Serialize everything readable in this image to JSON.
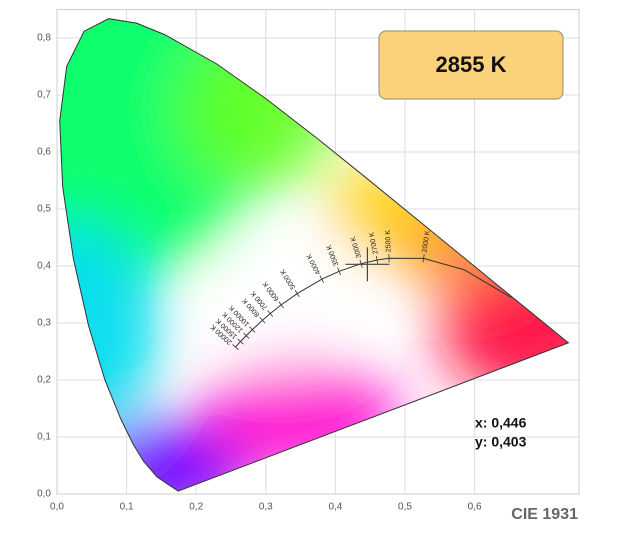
{
  "chart_data": {
    "type": "chromaticity",
    "xlim": [
      0,
      0.75
    ],
    "ylim": [
      0,
      0.85
    ],
    "grid": true,
    "xticks": [
      {
        "value": 0,
        "label": "0,0"
      },
      {
        "value": 0.1,
        "label": "0,1"
      },
      {
        "value": 0.2,
        "label": "0,2"
      },
      {
        "value": 0.3,
        "label": "0,3"
      },
      {
        "value": 0.4,
        "label": "0,4"
      },
      {
        "value": 0.5,
        "label": "0,5"
      },
      {
        "value": 0.6,
        "label": "0,6"
      }
    ],
    "yticks": [
      {
        "value": 0,
        "label": "0,0"
      },
      {
        "value": 0.1,
        "label": "0,1"
      },
      {
        "value": 0.2,
        "label": "0,2"
      },
      {
        "value": 0.3,
        "label": "0,3"
      },
      {
        "value": 0.4,
        "label": "0,4"
      },
      {
        "value": 0.5,
        "label": "0,5"
      },
      {
        "value": 0.6,
        "label": "0,6"
      },
      {
        "value": 0.7,
        "label": "0,7"
      },
      {
        "value": 0.8,
        "label": "0,8"
      }
    ],
    "spectral_locus": {
      "x": [
        0.1741,
        0.144,
        0.1241,
        0.1096,
        0.0913,
        0.0687,
        0.0454,
        0.0235,
        0.0082,
        0.0039,
        0.0139,
        0.0389,
        0.0743,
        0.1142,
        0.1547,
        0.2296,
        0.3016,
        0.3731,
        0.4441,
        0.5125,
        0.5752,
        0.627,
        0.6915,
        0.7347
      ],
      "y": [
        0.005,
        0.0297,
        0.0578,
        0.0868,
        0.1327,
        0.2007,
        0.295,
        0.4127,
        0.5384,
        0.6548,
        0.7502,
        0.812,
        0.8338,
        0.8262,
        0.8059,
        0.7543,
        0.6923,
        0.6245,
        0.5547,
        0.4866,
        0.4242,
        0.3725,
        0.3083,
        0.2653
      ]
    },
    "planckian_locus": {
      "x": [
        0.6528,
        0.5857,
        0.5267,
        0.477,
        0.4599,
        0.4369,
        0.4053,
        0.3805,
        0.3451,
        0.3221,
        0.3064,
        0.2952,
        0.2807,
        0.2719,
        0.2637,
        0.2565
      ],
      "y": [
        0.3444,
        0.3931,
        0.4133,
        0.4137,
        0.4106,
        0.4041,
        0.3907,
        0.3768,
        0.3516,
        0.3318,
        0.3166,
        0.3048,
        0.2884,
        0.2779,
        0.2675,
        0.2577
      ],
      "labels": [
        null,
        null,
        "2000 K",
        "2500 K",
        "2700 K",
        "3000 K",
        "3500 K",
        "4000 K",
        "5000 K",
        "6000 K",
        "7000 K",
        "8000 K",
        "10000 K",
        "12000 K",
        "15000 K",
        "20000 K"
      ]
    },
    "point": {
      "x": 0.446,
      "y": 0.403,
      "value_labels": {
        "x": "x: 0,446",
        "y": "y: 0,403"
      },
      "cct": "2855 K"
    },
    "caption": "CIE 1931"
  }
}
